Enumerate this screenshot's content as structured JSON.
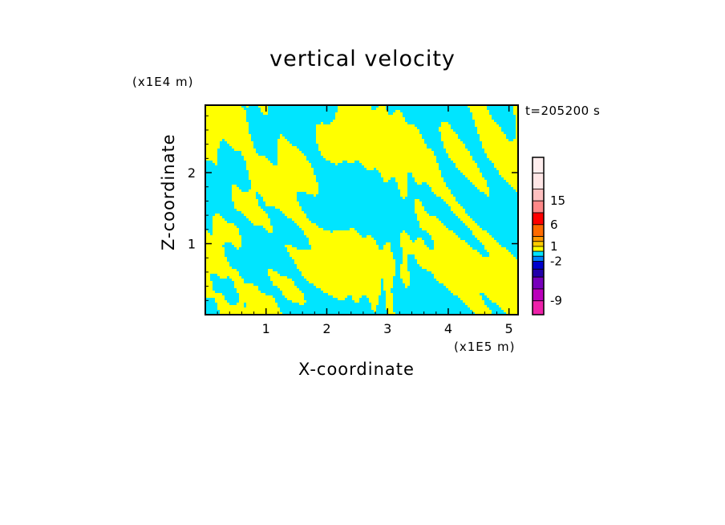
{
  "chart_data": {
    "type": "heatmap",
    "title": "vertical velocity",
    "xlabel": "X-coordinate",
    "ylabel": "Z-coordinate",
    "x_unit": "(x1E5 m)",
    "z_unit": "(x1E4 m)",
    "time_label": "t=205200 s",
    "xlim": [
      0,
      5.15
    ],
    "ylim": [
      0,
      2.95
    ],
    "x_ticks": [
      "1",
      "2",
      "3",
      "4",
      "5"
    ],
    "x_tick_values": [
      1,
      2,
      3,
      4,
      5
    ],
    "y_ticks": [
      "1",
      "2"
    ],
    "y_tick_values": [
      1,
      2
    ],
    "field_colors": {
      "positive": "#ffff00",
      "negative": "#00e5ff"
    },
    "colorbar": {
      "labels": [
        "15",
        "6",
        "1",
        "-2",
        "-9"
      ],
      "segments": [
        "#ffeeee",
        "#ffe6e6",
        "#ffc0c0",
        "#ff8888",
        "#ff0000",
        "#ff6a00",
        "#ff9900",
        "#ffcc00",
        "#ffff00",
        "#00e5ff",
        "#0080ff",
        "#0000cc",
        "#2200aa",
        "#7700bb",
        "#bb00bb",
        "#ee22aa"
      ]
    }
  }
}
